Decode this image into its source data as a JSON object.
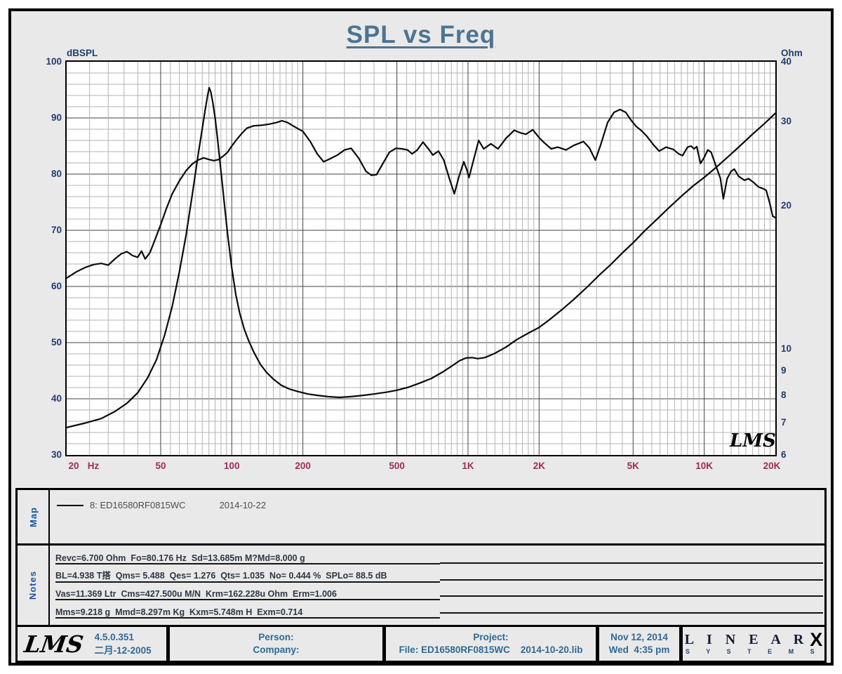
{
  "title": "SPL vs Freq",
  "chart": {
    "left_axis": {
      "label": "dBSPL",
      "ticks": [
        100,
        90,
        80,
        70,
        60,
        50,
        40,
        30
      ]
    },
    "right_axis": {
      "label": "Ohm",
      "ticks": [
        40,
        30,
        20,
        10,
        9,
        8,
        7,
        6
      ]
    },
    "x_axis": {
      "unit": "Hz",
      "labels": [
        {
          "text": "20",
          "f": 20
        },
        {
          "text": "50",
          "f": 50
        },
        {
          "text": "100",
          "f": 100
        },
        {
          "text": "200",
          "f": 200
        },
        {
          "text": "500",
          "f": 500
        },
        {
          "text": "1K",
          "f": 1000
        },
        {
          "text": "2K",
          "f": 2000
        },
        {
          "text": "5K",
          "f": 5000
        },
        {
          "text": "10K",
          "f": 10000
        },
        {
          "text": "20K",
          "f": 20000
        }
      ]
    },
    "watermark": "LMS",
    "colors": {
      "curve": "#0a0a0a",
      "grid_minor": "#b3b3b3",
      "grid_major": "#424242",
      "axis_text": "#203d73",
      "freq_text": "#a22a58",
      "title": "#4c7493"
    }
  },
  "chart_data": {
    "type": "line",
    "title": "SPL vs Freq",
    "x_scale": "log",
    "x_range_hz": [
      20,
      20000
    ],
    "left_axis": {
      "label": "dBSPL",
      "scale": "linear",
      "range": [
        30,
        100
      ],
      "minor_step_db": 2
    },
    "right_axis": {
      "label": "Ohm",
      "scale": "log",
      "range": [
        6,
        40
      ]
    },
    "grid": "log-frequency graph paper, both axes gridded",
    "legend_position": "map panel below chart",
    "series": [
      {
        "name": "SPL",
        "axis": "left",
        "units": "dBSPL",
        "points": [
          [
            20,
            61.5
          ],
          [
            22,
            62.6
          ],
          [
            24,
            63.4
          ],
          [
            26,
            63.9
          ],
          [
            28,
            64.1
          ],
          [
            30,
            63.8
          ],
          [
            32,
            64.9
          ],
          [
            34,
            65.8
          ],
          [
            36,
            66.2
          ],
          [
            38,
            65.5
          ],
          [
            40,
            65.2
          ],
          [
            41.5,
            66.3
          ],
          [
            43,
            64.9
          ],
          [
            45,
            66.0
          ],
          [
            47,
            68.0
          ],
          [
            50,
            71.0
          ],
          [
            53,
            74.0
          ],
          [
            56,
            76.5
          ],
          [
            60,
            78.8
          ],
          [
            64,
            80.6
          ],
          [
            68,
            81.8
          ],
          [
            72,
            82.5
          ],
          [
            76,
            82.9
          ],
          [
            80,
            82.6
          ],
          [
            84,
            82.4
          ],
          [
            88,
            82.6
          ],
          [
            92,
            83.2
          ],
          [
            96,
            83.9
          ],
          [
            100,
            85.0
          ],
          [
            105,
            86.2
          ],
          [
            110,
            87.2
          ],
          [
            116,
            88.2
          ],
          [
            124,
            88.6
          ],
          [
            134,
            88.7
          ],
          [
            144,
            88.9
          ],
          [
            155,
            89.2
          ],
          [
            163,
            89.5
          ],
          [
            172,
            89.2
          ],
          [
            185,
            88.4
          ],
          [
            200,
            87.6
          ],
          [
            215,
            85.8
          ],
          [
            230,
            83.6
          ],
          [
            245,
            82.2
          ],
          [
            260,
            82.7
          ],
          [
            280,
            83.4
          ],
          [
            300,
            84.3
          ],
          [
            320,
            84.6
          ],
          [
            345,
            82.8
          ],
          [
            370,
            80.5
          ],
          [
            390,
            79.8
          ],
          [
            410,
            79.9
          ],
          [
            435,
            81.8
          ],
          [
            465,
            83.9
          ],
          [
            495,
            84.6
          ],
          [
            525,
            84.5
          ],
          [
            555,
            84.3
          ],
          [
            580,
            83.6
          ],
          [
            610,
            84.3
          ],
          [
            645,
            85.7
          ],
          [
            680,
            84.5
          ],
          [
            710,
            83.4
          ],
          [
            750,
            84.1
          ],
          [
            790,
            82.5
          ],
          [
            830,
            79.5
          ],
          [
            875,
            76.5
          ],
          [
            915,
            79.5
          ],
          [
            960,
            82.2
          ],
          [
            990,
            80.7
          ],
          [
            1010,
            79.4
          ],
          [
            1060,
            82.8
          ],
          [
            1110,
            86.0
          ],
          [
            1165,
            84.5
          ],
          [
            1250,
            85.4
          ],
          [
            1340,
            84.5
          ],
          [
            1450,
            86.4
          ],
          [
            1570,
            87.8
          ],
          [
            1680,
            87.3
          ],
          [
            1760,
            87.1
          ],
          [
            1880,
            87.9
          ],
          [
            2000,
            86.5
          ],
          [
            2100,
            85.6
          ],
          [
            2250,
            84.5
          ],
          [
            2400,
            84.8
          ],
          [
            2600,
            84.3
          ],
          [
            2800,
            85.1
          ],
          [
            3080,
            85.8
          ],
          [
            3260,
            84.7
          ],
          [
            3460,
            82.5
          ],
          [
            3650,
            85.3
          ],
          [
            3900,
            89.2
          ],
          [
            4150,
            91.0
          ],
          [
            4400,
            91.5
          ],
          [
            4650,
            91.0
          ],
          [
            4900,
            89.6
          ],
          [
            5150,
            88.5
          ],
          [
            5400,
            87.8
          ],
          [
            5700,
            86.8
          ],
          [
            6100,
            85.2
          ],
          [
            6450,
            84.1
          ],
          [
            6900,
            84.8
          ],
          [
            7400,
            84.4
          ],
          [
            7800,
            83.6
          ],
          [
            8100,
            83.3
          ],
          [
            8500,
            84.8
          ],
          [
            8800,
            85.0
          ],
          [
            9050,
            84.5
          ],
          [
            9300,
            84.9
          ],
          [
            9650,
            81.9
          ],
          [
            10000,
            83.0
          ],
          [
            10350,
            84.3
          ],
          [
            10700,
            83.9
          ],
          [
            11200,
            81.5
          ],
          [
            11700,
            79.3
          ],
          [
            12050,
            75.6
          ],
          [
            12500,
            79.2
          ],
          [
            13000,
            80.5
          ],
          [
            13400,
            80.9
          ],
          [
            14000,
            79.6
          ],
          [
            14800,
            78.9
          ],
          [
            15400,
            79.2
          ],
          [
            16200,
            78.5
          ],
          [
            17000,
            77.7
          ],
          [
            17800,
            77.4
          ],
          [
            18300,
            77.1
          ],
          [
            19000,
            74.6
          ],
          [
            19500,
            72.5
          ],
          [
            19900,
            72.3
          ]
        ]
      },
      {
        "name": "Impedance",
        "axis": "right",
        "units": "Ohm",
        "points": [
          [
            20,
            6.85
          ],
          [
            24,
            7.0
          ],
          [
            28,
            7.15
          ],
          [
            32,
            7.4
          ],
          [
            36,
            7.7
          ],
          [
            40,
            8.1
          ],
          [
            44,
            8.7
          ],
          [
            48,
            9.5
          ],
          [
            52,
            10.7
          ],
          [
            56,
            12.3
          ],
          [
            60,
            14.5
          ],
          [
            64,
            17.3
          ],
          [
            68,
            21.0
          ],
          [
            72,
            25.5
          ],
          [
            75,
            29.0
          ],
          [
            77,
            31.5
          ],
          [
            79,
            34.0
          ],
          [
            80.2,
            35.3
          ],
          [
            81.5,
            34.6
          ],
          [
            83,
            33.0
          ],
          [
            85,
            30.5
          ],
          [
            87,
            27.6
          ],
          [
            90,
            23.6
          ],
          [
            93,
            20.2
          ],
          [
            96,
            17.4
          ],
          [
            100,
            14.8
          ],
          [
            104,
            13.0
          ],
          [
            108,
            11.9
          ],
          [
            113,
            11.0
          ],
          [
            118,
            10.4
          ],
          [
            124,
            9.85
          ],
          [
            132,
            9.3
          ],
          [
            140,
            8.95
          ],
          [
            150,
            8.65
          ],
          [
            162,
            8.4
          ],
          [
            175,
            8.25
          ],
          [
            190,
            8.15
          ],
          [
            210,
            8.05
          ],
          [
            230,
            8.0
          ],
          [
            255,
            7.95
          ],
          [
            285,
            7.92
          ],
          [
            320,
            7.95
          ],
          [
            360,
            8.0
          ],
          [
            400,
            8.05
          ],
          [
            450,
            8.12
          ],
          [
            500,
            8.2
          ],
          [
            560,
            8.32
          ],
          [
            630,
            8.5
          ],
          [
            700,
            8.68
          ],
          [
            780,
            8.95
          ],
          [
            850,
            9.2
          ],
          [
            920,
            9.45
          ],
          [
            980,
            9.58
          ],
          [
            1040,
            9.6
          ],
          [
            1100,
            9.55
          ],
          [
            1180,
            9.6
          ],
          [
            1300,
            9.8
          ],
          [
            1450,
            10.1
          ],
          [
            1600,
            10.45
          ],
          [
            1800,
            10.8
          ],
          [
            2000,
            11.1
          ],
          [
            2200,
            11.5
          ],
          [
            2500,
            12.1
          ],
          [
            2800,
            12.7
          ],
          [
            3200,
            13.5
          ],
          [
            3600,
            14.3
          ],
          [
            4000,
            15.0
          ],
          [
            4500,
            15.9
          ],
          [
            5000,
            16.7
          ],
          [
            5600,
            17.7
          ],
          [
            6300,
            18.7
          ],
          [
            7100,
            19.8
          ],
          [
            8000,
            20.9
          ],
          [
            9000,
            22.0
          ],
          [
            10000,
            22.9
          ],
          [
            11200,
            24.0
          ],
          [
            12500,
            25.2
          ],
          [
            14000,
            26.5
          ],
          [
            16000,
            28.2
          ],
          [
            18000,
            29.7
          ],
          [
            20000,
            31.2
          ]
        ]
      }
    ]
  },
  "map": {
    "label": "Map",
    "legend_text": "8: ED16580RF0815WC",
    "legend_date": "2014-10-22"
  },
  "notes": {
    "label": "Notes",
    "lines": [
      "Revc=6.700 Ohm  Fo=80.176 Hz  Sd=13.685m M?Md=8.000 g",
      "BL=4.938 T搭  Qms= 5.488  Qes= 1.276  Qts= 1.035  No= 0.444 %  SPLo= 88.5 dB",
      "Vas=11.369 Ltr  Cms=427.500u M/N  Krm=162.228u Ohm  Erm=1.006",
      "Mms=9.218 g  Mmd=8.297m Kg  Kxm=5.748m H  Exm=0.714"
    ]
  },
  "footer": {
    "lms_logo": "LMS",
    "version": "4.5.0.351",
    "version_date": "二月-12-2005",
    "person_label": "Person:",
    "company_label": "Company:",
    "project_label": "Project:",
    "file_label": "File: ED16580RF0815WC    2014-10-20.lib",
    "date": "Nov 12, 2014",
    "time": "Wed  4:35 pm",
    "brand_line1": "L I N E A R",
    "brand_x": "X",
    "brand_line2": "S Y S T E M S"
  }
}
